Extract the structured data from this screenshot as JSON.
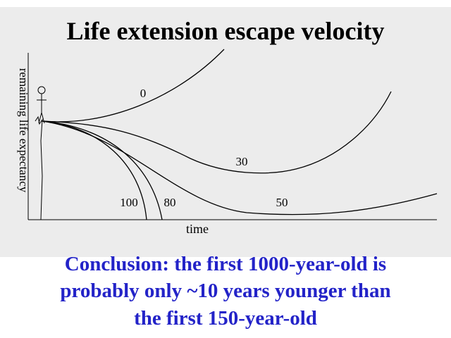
{
  "title": "Life extension escape velocity",
  "y_axis_label": "remaining life expectancy",
  "x_axis_label": "time",
  "curves": [
    {
      "label": "0"
    },
    {
      "label": "30"
    },
    {
      "label": "50"
    },
    {
      "label": "80"
    },
    {
      "label": "100"
    }
  ],
  "conclusion": [
    "Conclusion: the first 1000-year-old is",
    "probably only ~10 years younger than",
    "the first 150-year-old"
  ]
}
